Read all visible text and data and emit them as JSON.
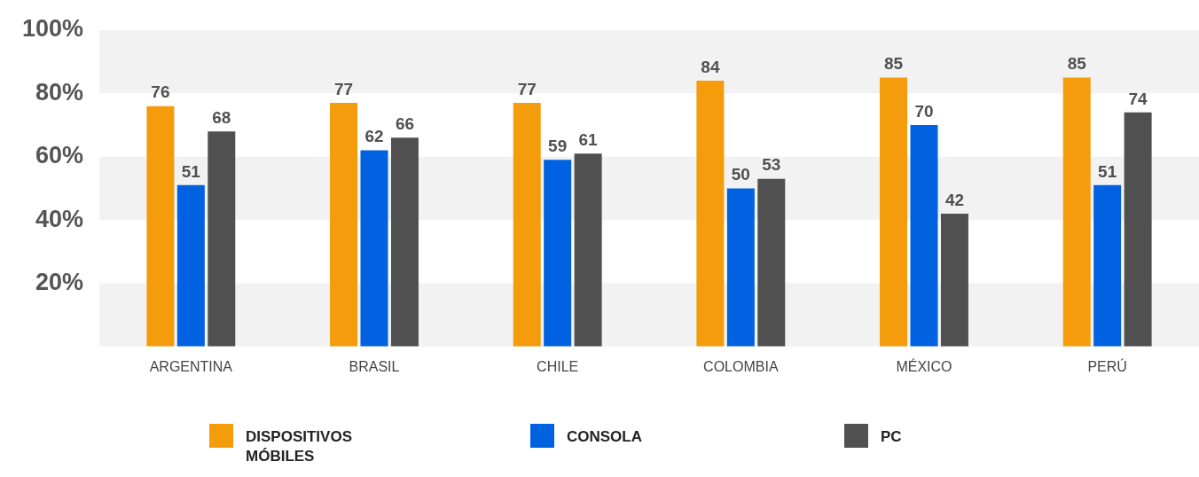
{
  "chart_data": {
    "type": "bar",
    "categories": [
      "ARGENTINA",
      "BRASIL",
      "CHILE",
      "COLOMBIA",
      "MÉXICO",
      "PERÚ"
    ],
    "series": [
      {
        "name": "DISPOSITIVOS MÓBILES",
        "color": "#f49c0c",
        "values": [
          76,
          77,
          77,
          84,
          85,
          85
        ]
      },
      {
        "name": "CONSOLA",
        "color": "#0062e0",
        "values": [
          51,
          62,
          59,
          50,
          70,
          51
        ]
      },
      {
        "name": "PC",
        "color": "#505050",
        "values": [
          68,
          66,
          61,
          53,
          42,
          74
        ]
      }
    ],
    "ylim": [
      0,
      100
    ],
    "yticks": [
      {
        "value": 20,
        "label": "20%"
      },
      {
        "value": 40,
        "label": "40%"
      },
      {
        "value": 60,
        "label": "60%"
      },
      {
        "value": 80,
        "label": "80%"
      },
      {
        "value": 100,
        "label": "100%"
      }
    ],
    "bands": [
      {
        "axis": "y",
        "from": 0,
        "to": 20,
        "color": "#f2f2f2"
      },
      {
        "axis": "y",
        "from": 40,
        "to": 60,
        "color": "#f2f2f2"
      },
      {
        "axis": "y",
        "from": 80,
        "to": 100,
        "color": "#f2f2f2"
      }
    ],
    "data_labels": true,
    "legend": "bottom"
  }
}
